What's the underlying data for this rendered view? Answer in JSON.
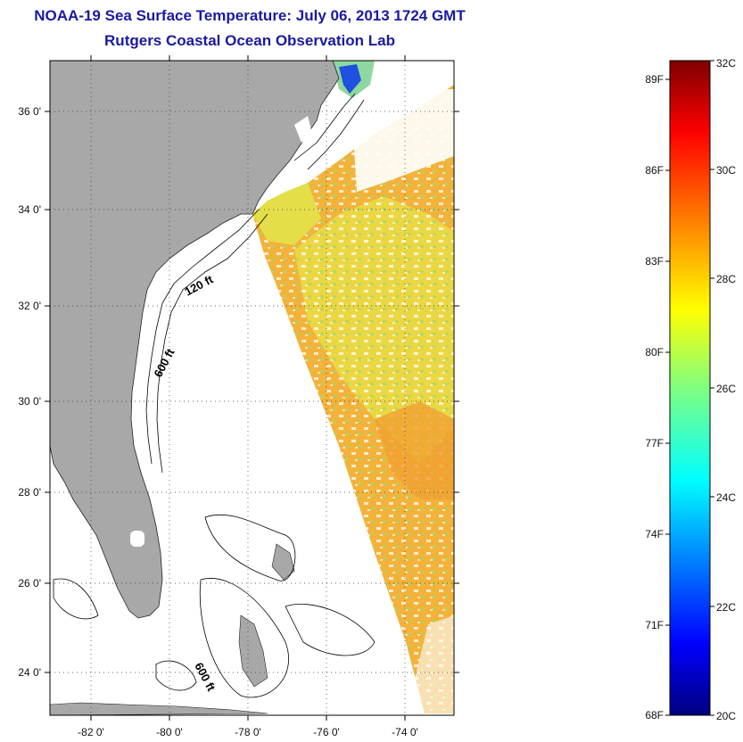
{
  "header": {
    "title": "NOAA-19 Sea Surface Temperature:  July 06, 2013 1724 GMT",
    "subtitle": "Rutgers Coastal Ocean Observation Lab"
  },
  "map": {
    "lat_labels": [
      "36 0'",
      "34 0'",
      "32 0'",
      "30 0'",
      "28 0'",
      "26 0'",
      "24 0'"
    ],
    "lon_labels": [
      "-82 0'",
      "-80 0'",
      "-78 0'",
      "-76 0'",
      "-74 0'"
    ],
    "contour_labels": [
      "120 ft",
      "600 ft",
      "600 ft"
    ],
    "colors": {
      "land": "#a8a8a8",
      "ocean_no_data": "#ffffff",
      "warm_sst": "#f5a830",
      "mid_sst": "#e8e040",
      "cool_sst": "#9edc6a",
      "cold_inlet": "#2050e0"
    }
  },
  "colorbar": {
    "celsius_labels": [
      "32C",
      "30C",
      "28C",
      "26C",
      "24C",
      "22C",
      "20C"
    ],
    "fahrenheit_labels": [
      "89F",
      "86F",
      "83F",
      "80F",
      "77F",
      "74F",
      "71F",
      "68F"
    ],
    "range_celsius": [
      20,
      32
    ],
    "colormap": "jet"
  }
}
